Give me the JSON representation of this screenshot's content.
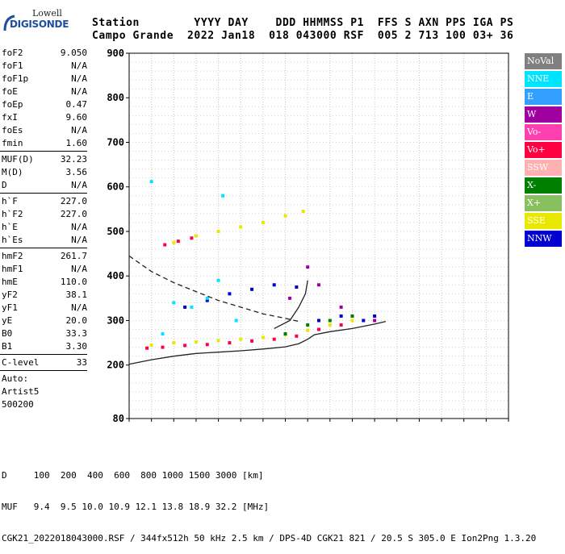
{
  "logo": {
    "line1": "Lowell",
    "line2": "DIGISONDE"
  },
  "header": {
    "line1": "Station        YYYY DAY    DDD HHMMSS P1  FFS S AXN PPS IGA PS",
    "line2": "Campo Grande  2022 Jan18  018 043000 RSF  005 2 713 100 03+ 36"
  },
  "params": {
    "group1": [
      {
        "label": "foF2",
        "value": "9.050"
      },
      {
        "label": "foF1",
        "value": "N/A"
      },
      {
        "label": "foF1p",
        "value": "N/A"
      },
      {
        "label": "foE",
        "value": "N/A"
      },
      {
        "label": "foEp",
        "value": "0.47"
      },
      {
        "label": "fxI",
        "value": "9.60"
      },
      {
        "label": "foEs",
        "value": "N/A"
      },
      {
        "label": "fmin",
        "value": "1.60"
      }
    ],
    "group2": [
      {
        "label": "MUF(D)",
        "value": "32.23"
      },
      {
        "label": "M(D)",
        "value": "3.56"
      },
      {
        "label": "D",
        "value": "N/A"
      }
    ],
    "group3": [
      {
        "label": "h`F",
        "value": "227.0"
      },
      {
        "label": "h`F2",
        "value": "227.0"
      },
      {
        "label": "h`E",
        "value": "N/A"
      },
      {
        "label": "h`Es",
        "value": "N/A"
      }
    ],
    "group4": [
      {
        "label": "hmF2",
        "value": "261.7"
      },
      {
        "label": "hmF1",
        "value": "N/A"
      },
      {
        "label": "hmE",
        "value": "110.0"
      },
      {
        "label": "yF2",
        "value": "38.1"
      },
      {
        "label": "yF1",
        "value": "N/A"
      },
      {
        "label": "yE",
        "value": "20.0"
      },
      {
        "label": "B0",
        "value": "33.3"
      },
      {
        "label": "B1",
        "value": "3.30"
      }
    ],
    "group5": [
      {
        "label": "C-level",
        "value": "33"
      }
    ],
    "auto": [
      "Auto:",
      "Artist5",
      "500200"
    ]
  },
  "legend": [
    {
      "label": "NoVal",
      "color": "#808080"
    },
    {
      "label": "NNE",
      "color": "#00e5ff"
    },
    {
      "label": "E",
      "color": "#33a0ff"
    },
    {
      "label": "W",
      "color": "#a000a0"
    },
    {
      "label": "Vo-",
      "color": "#ff40b0"
    },
    {
      "label": "Vo+",
      "color": "#ff0040"
    },
    {
      "label": "SSW",
      "color": "#ffb0b0"
    },
    {
      "label": "X-",
      "color": "#008000"
    },
    {
      "label": "X+",
      "color": "#88c060"
    },
    {
      "label": "SSE",
      "color": "#e8e800"
    },
    {
      "label": "NNW",
      "color": "#0000d0"
    }
  ],
  "chart_data": {
    "type": "scatter",
    "title": "",
    "xlabel": "",
    "ylabel": "",
    "xlim": [
      1,
      18
    ],
    "ylim": [
      80,
      900
    ],
    "xticks": [
      1,
      2,
      3,
      4,
      5,
      6,
      7,
      8,
      9,
      10,
      11,
      12,
      13,
      14,
      15,
      16,
      17,
      18
    ],
    "yticks": [
      80,
      200,
      300,
      400,
      500,
      600,
      700,
      800,
      900
    ],
    "series": [
      {
        "color": "#e8e800",
        "points": [
          [
            2.0,
            245
          ],
          [
            3.0,
            250
          ],
          [
            4.0,
            252
          ],
          [
            5.0,
            255
          ],
          [
            6.0,
            258
          ],
          [
            7.0,
            262
          ],
          [
            8.0,
            268
          ],
          [
            9.0,
            278
          ],
          [
            10.0,
            290
          ],
          [
            11.0,
            300
          ],
          [
            12.0,
            310
          ],
          [
            3.0,
            475
          ],
          [
            4.0,
            490
          ],
          [
            5.0,
            500
          ],
          [
            6.0,
            510
          ],
          [
            7.0,
            520
          ],
          [
            8.0,
            535
          ],
          [
            8.8,
            545
          ]
        ]
      },
      {
        "color": "#ff0040",
        "points": [
          [
            1.8,
            238
          ],
          [
            2.5,
            240
          ],
          [
            3.5,
            244
          ],
          [
            4.5,
            246
          ],
          [
            5.5,
            250
          ],
          [
            6.5,
            254
          ],
          [
            7.5,
            258
          ],
          [
            8.5,
            265
          ],
          [
            9.5,
            280
          ],
          [
            10.5,
            290
          ],
          [
            2.6,
            470
          ],
          [
            3.2,
            478
          ],
          [
            3.8,
            485
          ]
        ]
      },
      {
        "color": "#0000d0",
        "points": [
          [
            3.5,
            330
          ],
          [
            4.5,
            345
          ],
          [
            5.5,
            360
          ],
          [
            6.5,
            370
          ],
          [
            7.5,
            380
          ],
          [
            8.5,
            375
          ],
          [
            9.5,
            300
          ],
          [
            10.5,
            310
          ],
          [
            11.5,
            300
          ],
          [
            12.0,
            310
          ]
        ]
      },
      {
        "color": "#00e5ff",
        "points": [
          [
            2.5,
            270
          ],
          [
            3.0,
            340
          ],
          [
            3.8,
            330
          ],
          [
            4.5,
            350
          ],
          [
            5.0,
            390
          ],
          [
            5.2,
            580
          ],
          [
            5.8,
            300
          ],
          [
            2.0,
            612
          ]
        ]
      },
      {
        "color": "#a000a0",
        "points": [
          [
            8.2,
            350
          ],
          [
            9.0,
            420
          ],
          [
            9.5,
            380
          ],
          [
            10.5,
            330
          ],
          [
            11.0,
            310
          ],
          [
            12.0,
            300
          ]
        ]
      },
      {
        "color": "#008000",
        "points": [
          [
            8.0,
            270
          ],
          [
            9.0,
            290
          ],
          [
            10.0,
            300
          ],
          [
            11.0,
            310
          ]
        ]
      }
    ],
    "lines": [
      {
        "style": "solid",
        "points": [
          [
            1.0,
            202
          ],
          [
            2.0,
            212
          ],
          [
            3.0,
            220
          ],
          [
            4.0,
            226
          ],
          [
            5.0,
            229
          ],
          [
            6.0,
            232
          ],
          [
            7.0,
            236
          ],
          [
            8.0,
            241
          ],
          [
            8.6,
            248
          ],
          [
            9.0,
            258
          ],
          [
            9.3,
            268
          ],
          [
            10.0,
            275
          ],
          [
            11.0,
            282
          ],
          [
            12.0,
            292
          ],
          [
            12.5,
            298
          ]
        ]
      },
      {
        "style": "solid",
        "points": [
          [
            7.5,
            282
          ],
          [
            8.2,
            300
          ],
          [
            8.6,
            330
          ],
          [
            8.9,
            360
          ],
          [
            9.0,
            390
          ]
        ]
      },
      {
        "style": "dashed",
        "points": [
          [
            1.0,
            445
          ],
          [
            2.0,
            410
          ],
          [
            3.0,
            385
          ],
          [
            4.0,
            365
          ],
          [
            5.0,
            345
          ],
          [
            6.0,
            330
          ],
          [
            7.0,
            315
          ],
          [
            8.0,
            305
          ],
          [
            8.6,
            298
          ]
        ]
      }
    ]
  },
  "footer": {
    "line1": "D     100  200  400  600  800 1000 1500 3000 [km]",
    "line2": "MUF   9.4  9.5 10.0 10.9 12.1 13.8 18.9 32.2 [MHz]",
    "line3": "CGK21_2022018043000.RSF / 344fx512h 50 kHz 2.5 km / DPS-4D CGK21 821 / 20.5 S 305.0 E Ion2Png 1.3.20"
  }
}
